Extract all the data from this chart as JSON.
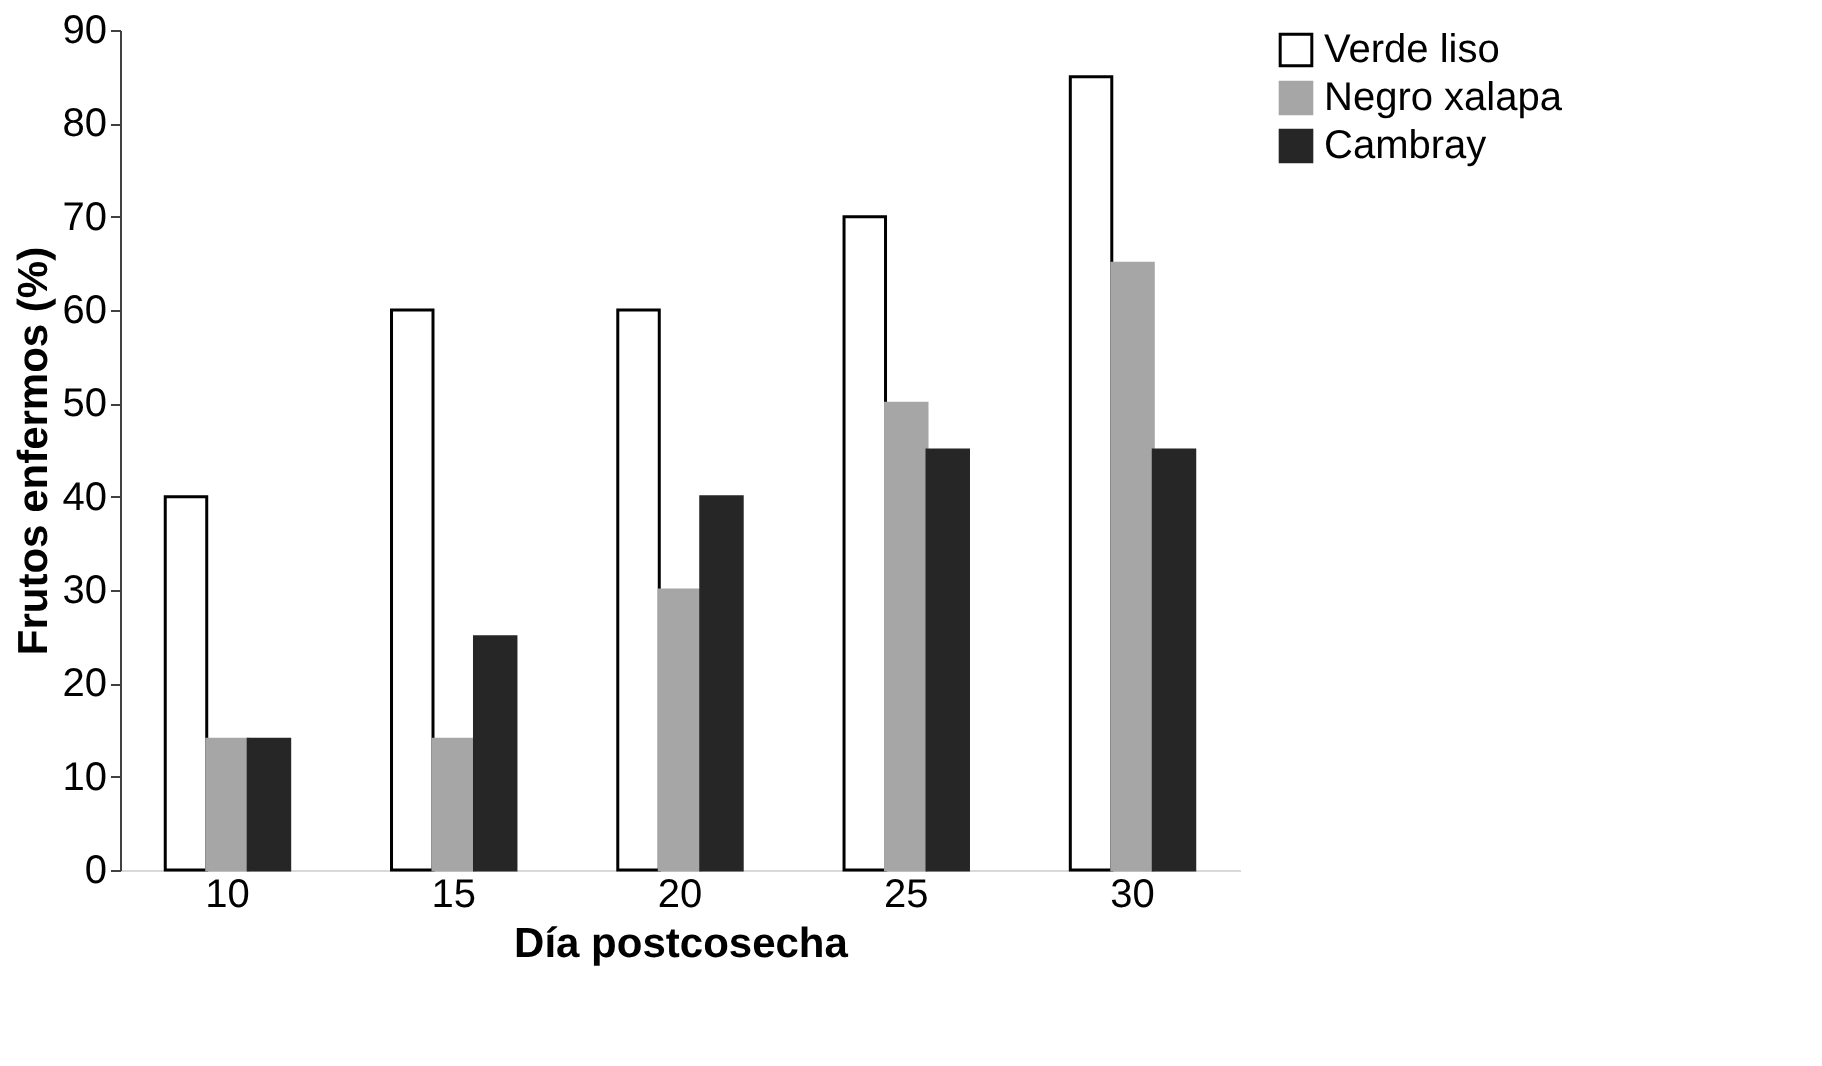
{
  "chart_data": {
    "type": "bar",
    "xlabel": "Día postcosecha",
    "ylabel": "Frutos enfermos (%)",
    "categories": [
      "10",
      "15",
      "20",
      "25",
      "30"
    ],
    "series": [
      {
        "name": "Verde liso",
        "color": "#ffffff",
        "values": [
          40,
          60,
          60,
          70,
          85
        ]
      },
      {
        "name": "Negro xalapa",
        "color": "#a6a6a6",
        "values": [
          14,
          14,
          30,
          50,
          65
        ]
      },
      {
        "name": "Cambray",
        "color": "#262626",
        "values": [
          14,
          25,
          40,
          45,
          45
        ]
      }
    ],
    "ylim": [
      0,
      90
    ],
    "yticks": [
      0,
      10,
      20,
      30,
      40,
      50,
      60,
      70,
      80,
      90
    ],
    "grid": false,
    "legend": "right"
  }
}
